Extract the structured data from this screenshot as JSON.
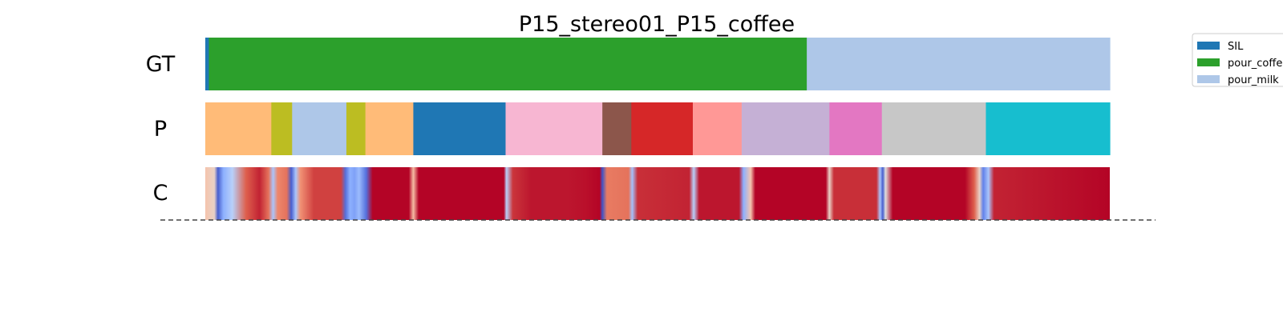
{
  "chart_data": {
    "type": "segmentation",
    "title": "P15_stereo01_P15_coffee",
    "rows": [
      {
        "label": "GT",
        "segments": [
          {
            "start": 0.0,
            "end": 0.004,
            "class": "SIL"
          },
          {
            "start": 0.004,
            "end": 0.665,
            "class": "pour_coffee"
          },
          {
            "start": 0.665,
            "end": 1.0,
            "class": "pour_milk"
          }
        ]
      },
      {
        "label": "P",
        "segments": [
          {
            "start": 0.0,
            "end": 0.073,
            "color": "#ffbb78"
          },
          {
            "start": 0.073,
            "end": 0.096,
            "color": "#bcbd22"
          },
          {
            "start": 0.096,
            "end": 0.156,
            "color": "#aec7e8"
          },
          {
            "start": 0.156,
            "end": 0.177,
            "color": "#bcbd22"
          },
          {
            "start": 0.177,
            "end": 0.23,
            "color": "#ffbb78"
          },
          {
            "start": 0.23,
            "end": 0.332,
            "color": "#1f77b4"
          },
          {
            "start": 0.332,
            "end": 0.439,
            "color": "#f7b6d2"
          },
          {
            "start": 0.439,
            "end": 0.471,
            "color": "#8c564b"
          },
          {
            "start": 0.471,
            "end": 0.539,
            "color": "#d62728"
          },
          {
            "start": 0.539,
            "end": 0.593,
            "color": "#ff9896"
          },
          {
            "start": 0.593,
            "end": 0.69,
            "color": "#c5b0d5"
          },
          {
            "start": 0.69,
            "end": 0.748,
            "color": "#e377c2"
          },
          {
            "start": 0.748,
            "end": 0.863,
            "color": "#c7c7c7"
          },
          {
            "start": 0.863,
            "end": 1.0,
            "color": "#17becf"
          }
        ]
      },
      {
        "label": "C",
        "colormap": "coolwarm",
        "confidence_knots": [
          [
            0.0,
            0.6
          ],
          [
            0.01,
            0.55
          ],
          [
            0.014,
            0.05
          ],
          [
            0.02,
            0.3
          ],
          [
            0.03,
            0.45
          ],
          [
            0.045,
            0.85
          ],
          [
            0.06,
            0.95
          ],
          [
            0.07,
            0.8
          ],
          [
            0.075,
            0.4
          ],
          [
            0.08,
            0.75
          ],
          [
            0.09,
            0.8
          ],
          [
            0.095,
            0.05
          ],
          [
            0.1,
            0.4
          ],
          [
            0.105,
            0.72
          ],
          [
            0.12,
            0.9
          ],
          [
            0.15,
            0.9
          ],
          [
            0.155,
            0.1
          ],
          [
            0.16,
            0.3
          ],
          [
            0.165,
            0.25
          ],
          [
            0.17,
            0.35
          ],
          [
            0.178,
            0.1
          ],
          [
            0.185,
            1.0
          ],
          [
            0.225,
            1.0
          ],
          [
            0.23,
            0.62
          ],
          [
            0.236,
            1.0
          ],
          [
            0.33,
            1.0
          ],
          [
            0.333,
            0.45
          ],
          [
            0.34,
            0.92
          ],
          [
            0.36,
            0.97
          ],
          [
            0.4,
            0.97
          ],
          [
            0.42,
            0.98
          ],
          [
            0.436,
            1.0
          ],
          [
            0.439,
            0.02
          ],
          [
            0.444,
            0.78
          ],
          [
            0.468,
            0.8
          ],
          [
            0.472,
            0.38
          ],
          [
            0.478,
            0.93
          ],
          [
            0.535,
            0.95
          ],
          [
            0.54,
            0.45
          ],
          [
            0.546,
            0.97
          ],
          [
            0.59,
            0.97
          ],
          [
            0.595,
            0.3
          ],
          [
            0.603,
            0.6
          ],
          [
            0.608,
            1.0
          ],
          [
            0.686,
            1.0
          ],
          [
            0.69,
            0.55
          ],
          [
            0.695,
            0.93
          ],
          [
            0.742,
            0.93
          ],
          [
            0.746,
            0.4
          ],
          [
            0.749,
            0.05
          ],
          [
            0.752,
            0.5
          ],
          [
            0.76,
            1.0
          ],
          [
            0.84,
            1.0
          ],
          [
            0.85,
            0.85
          ],
          [
            0.856,
            0.55
          ],
          [
            0.86,
            0.15
          ],
          [
            0.866,
            0.4
          ],
          [
            0.872,
            0.95
          ],
          [
            1.0,
            1.0
          ]
        ]
      }
    ],
    "legend": {
      "placement": "top-right",
      "entries": [
        {
          "label": "SIL",
          "color": "#1f77b4"
        },
        {
          "label": "pour_coffee",
          "color": "#2ca02c"
        },
        {
          "label": "pour_milk",
          "color": "#aec7e8"
        }
      ]
    }
  }
}
